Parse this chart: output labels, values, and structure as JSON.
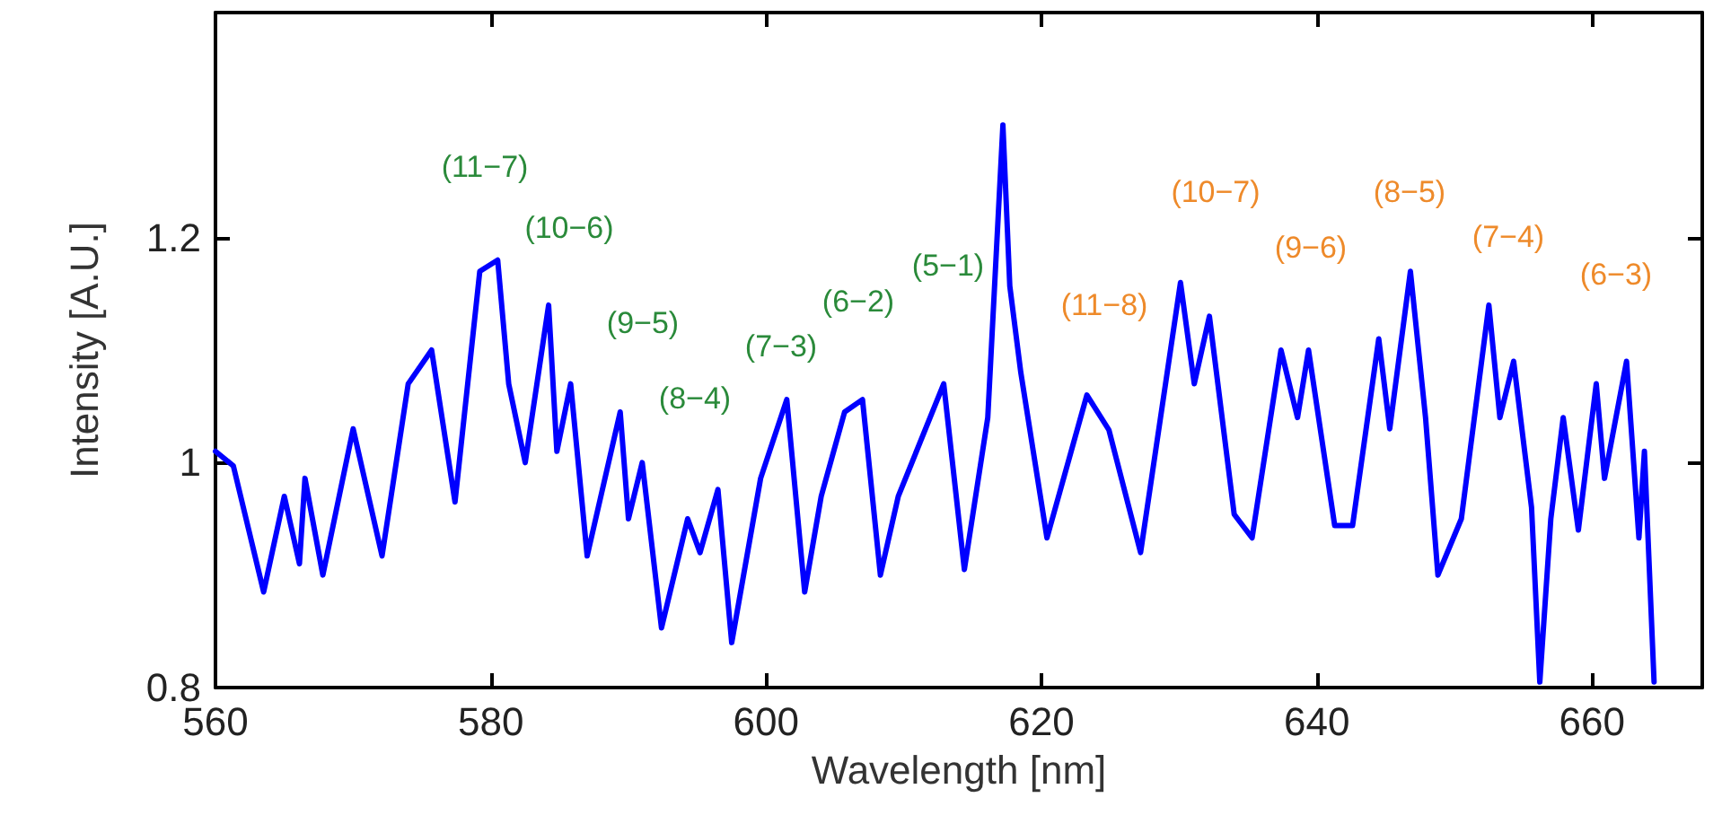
{
  "chart_data": {
    "type": "line",
    "xlabel": "Wavelength [nm]",
    "ylabel": "Intensity [A.U.]",
    "xlim": [
      560,
      668
    ],
    "xticks": [
      560,
      580,
      600,
      620,
      640,
      660
    ],
    "ylim": [
      0.8,
      1.4
    ],
    "yticks": [
      0.8,
      1,
      1.2
    ],
    "grid": false,
    "marker": "none",
    "line_style": "solid",
    "series": [
      {
        "color": "#0000ff",
        "x": [
          560,
          561.3,
          563.5,
          565,
          566.1,
          566.5,
          567.8,
          570,
          572.1,
          574,
          575.7,
          577.4,
          579.2,
          580.5,
          581.3,
          582.5,
          584.2,
          584.8,
          585.8,
          587,
          589.4,
          590,
          591,
          592.4,
          594.3,
          595.2,
          596.5,
          597.5,
          599.6,
          601.5,
          602.8,
          604,
          605.7,
          607,
          608.3,
          609.6,
          612.9,
          614.4,
          616.1,
          617.2,
          617.7,
          618.5,
          620.4,
          623.3,
          624.9,
          627.2,
          630.1,
          631.1,
          632.2,
          634,
          635.3,
          637.4,
          638.6,
          639.4,
          641.3,
          642.6,
          644.5,
          645.3,
          646.8,
          647.9,
          648.8,
          650.5,
          652.5,
          653.3,
          654.3,
          655.6,
          656.2,
          657,
          657.9,
          659,
          660.3,
          660.9,
          662.5,
          663.4,
          663.8,
          664.5
        ],
        "values": [
          1.01,
          0.997,
          0.885,
          0.97,
          0.91,
          0.986,
          0.9,
          1.03,
          0.917,
          1.07,
          1.1,
          0.965,
          1.17,
          1.18,
          1.07,
          1.0,
          1.14,
          1.01,
          1.07,
          0.917,
          1.045,
          0.95,
          1.0,
          0.853,
          0.95,
          0.92,
          0.976,
          0.84,
          0.986,
          1.056,
          0.885,
          0.97,
          1.045,
          1.056,
          0.9,
          0.97,
          1.07,
          0.905,
          1.04,
          1.3,
          1.157,
          1.08,
          0.933,
          1.06,
          1.029,
          0.92,
          1.16,
          1.07,
          1.13,
          0.954,
          0.933,
          1.1,
          1.04,
          1.1,
          0.944,
          0.944,
          1.11,
          1.03,
          1.17,
          1.04,
          0.9,
          0.95,
          1.14,
          1.04,
          1.09,
          0.96,
          0.805,
          0.95,
          1.04,
          0.94,
          1.07,
          0.986,
          1.09,
          0.933,
          1.01,
          0.805
        ]
      }
    ],
    "annotations": [
      "(11−7)",
      "(10−6)",
      "(9−5)",
      "(8−4)",
      "(7−3)",
      "(6−2)",
      "(5−1)",
      "(11−8)",
      "(10−7)",
      "(9−6)",
      "(8−5)",
      "(7−4)",
      "(6−3)"
    ]
  }
}
